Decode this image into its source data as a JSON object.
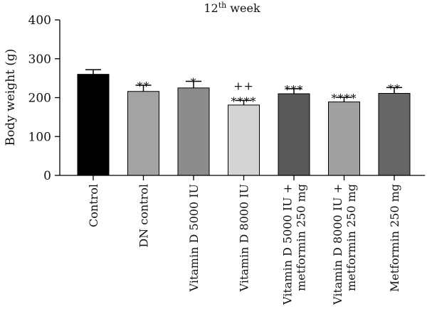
{
  "chart_data": {
    "type": "bar",
    "title": {
      "base": "12",
      "sup": "th",
      "rest": " week"
    },
    "ylabel": "Body weight (g)",
    "xlabel": "",
    "ylim": [
      0,
      400
    ],
    "yticks": [
      0,
      100,
      200,
      300,
      400
    ],
    "grid": false,
    "categories": [
      [
        "Control"
      ],
      [
        "DN control"
      ],
      [
        "Vitamin D 5000 IU"
      ],
      [
        "Vitamin D 8000 IU"
      ],
      [
        "Vitamin D 5000 IU +",
        "metformin 250 mg"
      ],
      [
        "Vitamin D 8000 IU +",
        "metformin 250 mg"
      ],
      [
        "Metformin 250 mg"
      ]
    ],
    "values": [
      260,
      216,
      225,
      181,
      210,
      189,
      211
    ],
    "errors": [
      12,
      16,
      17,
      12,
      13,
      12,
      15
    ],
    "colors": [
      "#000000",
      "#a3a3a3",
      "#8c8c8c",
      "#d4d4d4",
      "#595959",
      "#a0a0a0",
      "#666666"
    ],
    "significance": [
      [],
      [
        "**"
      ],
      [
        "*"
      ],
      [
        "++",
        "****"
      ],
      [
        "***"
      ],
      [
        "****"
      ],
      [
        "**"
      ]
    ]
  }
}
